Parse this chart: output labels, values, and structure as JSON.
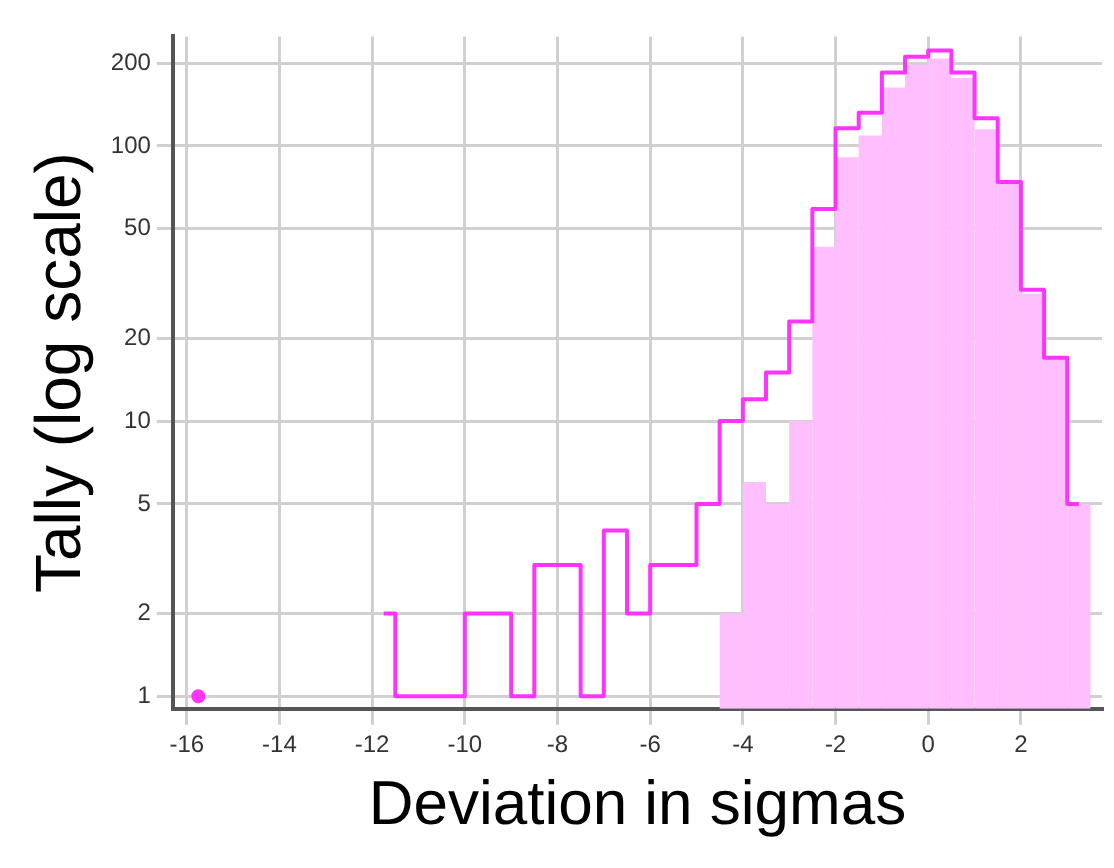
{
  "chart_data": {
    "type": "bar",
    "xlabel": "Deviation in sigmas",
    "ylabel": "Tally (log scale)",
    "x": [
      -15.75,
      -15.25,
      -14.75,
      -14.25,
      -13.75,
      -13.25,
      -12.75,
      -12.25,
      -11.75,
      -11.25,
      -10.75,
      -10.25,
      -9.75,
      -9.25,
      -8.75,
      -8.25,
      -7.75,
      -7.25,
      -6.75,
      -6.25,
      -5.75,
      -5.25,
      -4.75,
      -4.25,
      -3.75,
      -3.25,
      -2.75,
      -2.25,
      -1.75,
      -1.25,
      -0.75,
      -0.25,
      0.25,
      0.75,
      1.25,
      1.75,
      2.25,
      2.75,
      3.25
    ],
    "series": [
      {
        "color": "#ffbfff",
        "values": [
          null,
          null,
          null,
          null,
          null,
          null,
          null,
          null,
          null,
          null,
          null,
          null,
          null,
          null,
          null,
          null,
          null,
          null,
          null,
          null,
          null,
          null,
          null,
          2,
          6,
          5,
          10,
          43,
          91,
          109,
          163,
          197,
          208,
          177,
          115,
          74,
          29,
          17,
          5
        ]
      },
      {
        "type": "step",
        "color": "#ff33ff",
        "values": [
          1,
          null,
          null,
          null,
          null,
          null,
          null,
          null,
          2,
          1,
          1,
          1,
          2,
          2,
          1,
          3,
          3,
          1,
          4,
          2,
          3,
          3,
          5,
          10,
          12,
          15,
          23,
          59,
          116,
          132,
          185,
          211,
          222,
          185,
          126,
          74,
          30,
          17,
          5
        ]
      }
    ],
    "xlim": [
      -16.3,
      3.75
    ],
    "xticks": [
      -16,
      -14,
      -12,
      -10,
      -8,
      -6,
      -4,
      -2,
      0,
      2
    ],
    "ylim": [
      0.9,
      250
    ],
    "yticks": [
      1,
      2,
      5,
      10,
      20,
      50,
      100,
      200
    ],
    "log": "y",
    "grid": true,
    "legend": false
  }
}
